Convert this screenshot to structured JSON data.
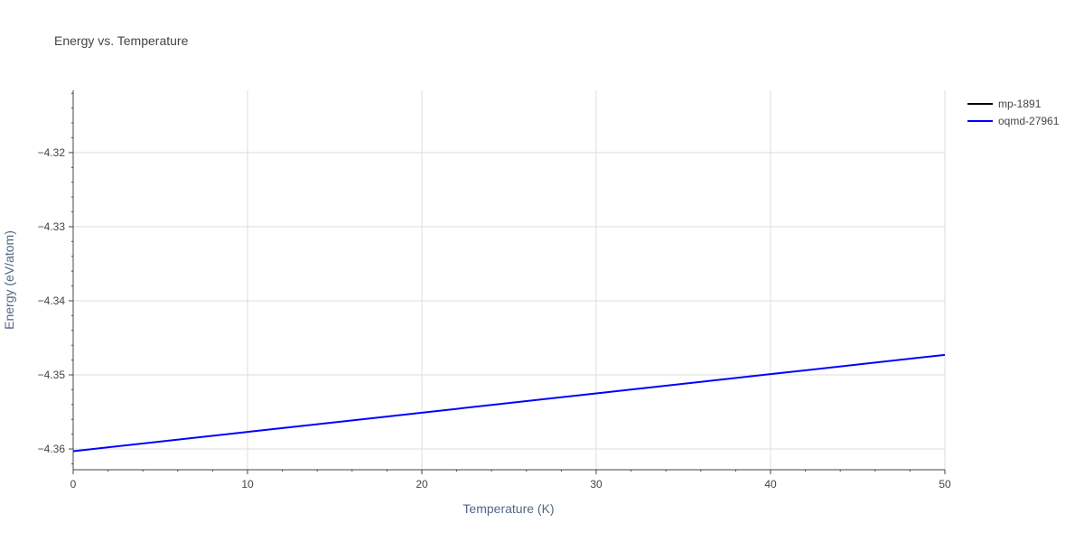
{
  "chart_data": {
    "type": "line",
    "title": "Energy vs. Temperature",
    "xlabel": "Temperature (K)",
    "ylabel": "Energy (eV/atom)",
    "xlim": [
      0,
      50
    ],
    "ylim": [
      -4.3628,
      -4.3116
    ],
    "x_ticks": [
      0,
      10,
      20,
      30,
      40,
      50
    ],
    "x_tick_labels": [
      "0",
      "10",
      "20",
      "30",
      "40",
      "50"
    ],
    "y_ticks": [
      -4.36,
      -4.35,
      -4.34,
      -4.33,
      -4.32
    ],
    "y_tick_labels": [
      "−4.36",
      "−4.35",
      "−4.34",
      "−4.33",
      "−4.32"
    ],
    "grid": true,
    "legend_position": "top-right",
    "series": [
      {
        "name": "mp-1891",
        "color": "#000000",
        "x": [],
        "y": []
      },
      {
        "name": "oqmd-27961",
        "color": "#0000ff",
        "x": [
          0,
          10,
          20,
          30,
          40,
          50
        ],
        "y": [
          -4.3603,
          -4.3577,
          -4.3551,
          -4.3525,
          -4.3499,
          -4.3473
        ]
      }
    ]
  }
}
